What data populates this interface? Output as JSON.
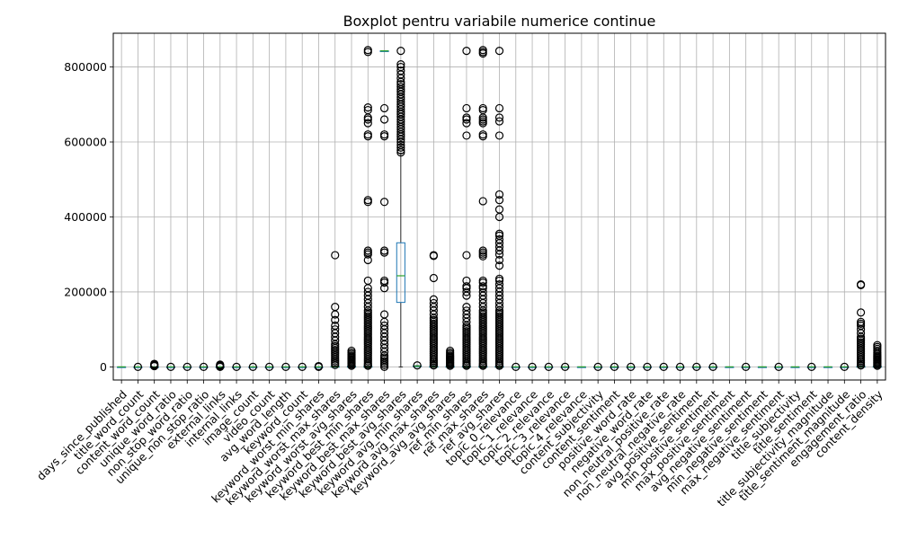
{
  "chart_data": {
    "type": "boxplot",
    "title": "Boxplot pentru variabile numerice continue",
    "xlabel": "",
    "ylabel": "",
    "ylim": [
      -35000,
      890000
    ],
    "yticks": [
      0,
      200000,
      400000,
      600000,
      800000
    ],
    "ytick_labels": [
      "0",
      "200000",
      "400000",
      "600000",
      "800000"
    ],
    "grid": true,
    "colors": {
      "box": "#1f77b4",
      "median": "#2ca02c",
      "flier": "#000000",
      "grid": "#b0b0b0"
    },
    "variables": [
      {
        "name": "days_since_published",
        "q1": 0,
        "median": 0,
        "q3": 0,
        "wlo": 0,
        "whi": 0,
        "fliers": []
      },
      {
        "name": "title_word_count",
        "q1": 0,
        "median": 0,
        "q3": 0,
        "wlo": 0,
        "whi": 0,
        "fliers": [
          0
        ]
      },
      {
        "name": "content_word_count",
        "q1": 0,
        "median": 0,
        "q3": 0,
        "wlo": 0,
        "whi": 0,
        "fliers": [
          2000,
          4000,
          6000,
          8000
        ]
      },
      {
        "name": "unique_word_ratio",
        "q1": 0,
        "median": 0,
        "q3": 0,
        "wlo": 0,
        "whi": 0,
        "fliers": [
          0
        ]
      },
      {
        "name": "non_stop_word_ratio",
        "q1": 0,
        "median": 0,
        "q3": 0,
        "wlo": 0,
        "whi": 0,
        "fliers": [
          0
        ]
      },
      {
        "name": "unique_non_stop_ratio",
        "q1": 0,
        "median": 0,
        "q3": 0,
        "wlo": 0,
        "whi": 0,
        "fliers": [
          0
        ]
      },
      {
        "name": "external_links",
        "q1": 0,
        "median": 0,
        "q3": 0,
        "wlo": 0,
        "whi": 0,
        "fliers": [
          0,
          2000,
          4000,
          6000
        ]
      },
      {
        "name": "internal_links",
        "q1": 0,
        "median": 0,
        "q3": 0,
        "wlo": 0,
        "whi": 0,
        "fliers": [
          0
        ]
      },
      {
        "name": "image_count",
        "q1": 0,
        "median": 0,
        "q3": 0,
        "wlo": 0,
        "whi": 0,
        "fliers": [
          0
        ]
      },
      {
        "name": "video_count",
        "q1": 0,
        "median": 0,
        "q3": 0,
        "wlo": 0,
        "whi": 0,
        "fliers": [
          0
        ]
      },
      {
        "name": "avg_word_length",
        "q1": 0,
        "median": 0,
        "q3": 0,
        "wlo": 0,
        "whi": 0,
        "fliers": [
          0
        ]
      },
      {
        "name": "keyword_count",
        "q1": 0,
        "median": 0,
        "q3": 0,
        "wlo": 0,
        "whi": 0,
        "fliers": [
          0
        ]
      },
      {
        "name": "keyword_worst_min_shares",
        "q1": 0,
        "median": 0,
        "q3": 0,
        "wlo": 0,
        "whi": 0,
        "fliers": [
          0,
          2000
        ]
      },
      {
        "name": "keyword_worst_max_shares",
        "q1": 0,
        "median": 0,
        "q3": 1000,
        "wlo": 0,
        "whi": 2000,
        "fliers": [
          5000,
          10000,
          15000,
          20000,
          25000,
          30000,
          35000,
          40000,
          45000,
          50000,
          55000,
          60000,
          70000,
          80000,
          90000,
          100000,
          110000,
          125000,
          140000,
          160000,
          298000
        ]
      },
      {
        "name": "keyword_worst_avg_shares",
        "q1": 0,
        "median": 0,
        "q3": 1000,
        "wlo": 0,
        "whi": 2000,
        "fliers": [
          3000,
          6000,
          9000,
          12000,
          15000,
          18000,
          21000,
          24000,
          27000,
          30000,
          34000,
          38000,
          43000
        ]
      },
      {
        "name": "keyword_best_min_shares",
        "q1": 0,
        "median": 0,
        "q3": 1000,
        "wlo": 0,
        "whi": 2000,
        "fliers": [
          3000,
          6000,
          10000,
          15000,
          20000,
          25000,
          30000,
          35000,
          40000,
          45000,
          50000,
          55000,
          60000,
          65000,
          70000,
          75000,
          80000,
          85000,
          90000,
          95000,
          100000,
          105000,
          110000,
          115000,
          120000,
          125000,
          130000,
          135000,
          140000,
          145000,
          150000,
          160000,
          170000,
          180000,
          190000,
          200000,
          210000,
          230000,
          285000,
          300000,
          305000,
          310000,
          440000,
          445000,
          615000,
          620000,
          650000,
          660000,
          665000,
          685000,
          692000,
          840000,
          845000
        ]
      },
      {
        "name": "keyword_best_max_shares",
        "q1": 843000,
        "median": 843000,
        "q3": 843000,
        "wlo": 843000,
        "whi": 843000,
        "fliers": [
          0,
          5000,
          10000,
          15000,
          20000,
          25000,
          30000,
          40000,
          50000,
          60000,
          70000,
          80000,
          90000,
          100000,
          110000,
          120000,
          140000,
          210000,
          225000,
          230000,
          305000,
          310000,
          440000,
          615000,
          620000,
          660000,
          690000
        ]
      },
      {
        "name": "keyword_best_avg_shares",
        "q1": 172000,
        "median": 243000,
        "q3": 331000,
        "wlo": 0,
        "whi": 570000,
        "fliers": [
          572000,
          578000,
          585000,
          592000,
          600000,
          607000,
          614000,
          620000,
          627000,
          634000,
          640000,
          647000,
          654000,
          660000,
          667000,
          674000,
          680000,
          687000,
          694000,
          700000,
          707000,
          714000,
          720000,
          727000,
          734000,
          740000,
          747000,
          754000,
          760000,
          770000,
          780000,
          790000,
          800000,
          807000,
          843000
        ]
      },
      {
        "name": "keyword_avg_min_shares",
        "q1": 1500,
        "median": 2000,
        "q3": 2500,
        "wlo": 500,
        "whi": 3500,
        "fliers": [
          4000
        ]
      },
      {
        "name": "keyword_avg_max_shares",
        "q1": 0,
        "median": 0,
        "q3": 1000,
        "wlo": 0,
        "whi": 2000,
        "fliers": [
          4000,
          8000,
          12000,
          16000,
          20000,
          25000,
          30000,
          35000,
          40000,
          45000,
          50000,
          55000,
          60000,
          65000,
          70000,
          75000,
          80000,
          85000,
          90000,
          95000,
          100000,
          105000,
          110000,
          115000,
          120000,
          125000,
          130000,
          140000,
          150000,
          160000,
          170000,
          180000,
          237000,
          296000,
          298000
        ]
      },
      {
        "name": "keyword_avg_avg_shares",
        "q1": 0,
        "median": 0,
        "q3": 1000,
        "wlo": 0,
        "whi": 2000,
        "fliers": [
          3000,
          6000,
          9000,
          12000,
          15000,
          18000,
          21000,
          24000,
          27000,
          30000,
          34000,
          38000,
          43000
        ]
      },
      {
        "name": "ref_min_shares",
        "q1": 0,
        "median": 0,
        "q3": 1000,
        "wlo": 0,
        "whi": 2000,
        "fliers": [
          3000,
          6000,
          10000,
          15000,
          20000,
          25000,
          30000,
          35000,
          40000,
          45000,
          50000,
          55000,
          60000,
          65000,
          70000,
          75000,
          80000,
          85000,
          90000,
          95000,
          100000,
          105000,
          110000,
          120000,
          130000,
          140000,
          150000,
          160000,
          190000,
          200000,
          210000,
          215000,
          230000,
          298000,
          617000,
          650000,
          660000,
          665000,
          690000,
          843000
        ]
      },
      {
        "name": "ref_max_shares",
        "q1": 0,
        "median": 0,
        "q3": 1000,
        "wlo": 0,
        "whi": 2000,
        "fliers": [
          3000,
          6000,
          10000,
          15000,
          20000,
          25000,
          30000,
          35000,
          40000,
          45000,
          50000,
          55000,
          60000,
          65000,
          70000,
          75000,
          80000,
          85000,
          90000,
          95000,
          100000,
          105000,
          110000,
          115000,
          120000,
          125000,
          130000,
          135000,
          140000,
          145000,
          150000,
          160000,
          170000,
          180000,
          190000,
          200000,
          210000,
          215000,
          225000,
          230000,
          295000,
          300000,
          305000,
          310000,
          442000,
          615000,
          620000,
          650000,
          655000,
          660000,
          665000,
          685000,
          690000,
          836000,
          840000,
          845000
        ]
      },
      {
        "name": "ref_avg_shares",
        "q1": 0,
        "median": 0,
        "q3": 1000,
        "wlo": 0,
        "whi": 2000,
        "fliers": [
          3000,
          6000,
          10000,
          15000,
          20000,
          25000,
          30000,
          35000,
          40000,
          45000,
          50000,
          55000,
          60000,
          65000,
          70000,
          75000,
          80000,
          85000,
          90000,
          95000,
          100000,
          105000,
          110000,
          115000,
          120000,
          125000,
          130000,
          135000,
          140000,
          145000,
          150000,
          160000,
          170000,
          180000,
          190000,
          200000,
          210000,
          220000,
          230000,
          235000,
          270000,
          285000,
          300000,
          310000,
          320000,
          330000,
          340000,
          350000,
          355000,
          400000,
          420000,
          445000,
          460000,
          617000,
          655000,
          665000,
          690000,
          843000
        ]
      },
      {
        "name": "topic_0_relevance",
        "q1": 0,
        "median": 0,
        "q3": 0,
        "wlo": 0,
        "whi": 0,
        "fliers": [
          0
        ]
      },
      {
        "name": "topic_1_relevance",
        "q1": 0,
        "median": 0,
        "q3": 0,
        "wlo": 0,
        "whi": 0,
        "fliers": [
          0
        ]
      },
      {
        "name": "topic_2_relevance",
        "q1": 0,
        "median": 0,
        "q3": 0,
        "wlo": 0,
        "whi": 0,
        "fliers": [
          0
        ]
      },
      {
        "name": "topic_3_relevance",
        "q1": 0,
        "median": 0,
        "q3": 0,
        "wlo": 0,
        "whi": 0,
        "fliers": [
          0
        ]
      },
      {
        "name": "topic_4_relevance",
        "q1": 0,
        "median": 0,
        "q3": 0,
        "wlo": 0,
        "whi": 0,
        "fliers": []
      },
      {
        "name": "content_subjectivity",
        "q1": 0,
        "median": 0,
        "q3": 0,
        "wlo": 0,
        "whi": 0,
        "fliers": [
          0
        ]
      },
      {
        "name": "content_sentiment",
        "q1": 0,
        "median": 0,
        "q3": 0,
        "wlo": 0,
        "whi": 0,
        "fliers": [
          0
        ]
      },
      {
        "name": "positive_word_rate",
        "q1": 0,
        "median": 0,
        "q3": 0,
        "wlo": 0,
        "whi": 0,
        "fliers": [
          0
        ]
      },
      {
        "name": "negative_word_rate",
        "q1": 0,
        "median": 0,
        "q3": 0,
        "wlo": 0,
        "whi": 0,
        "fliers": [
          0
        ]
      },
      {
        "name": "non_neutral_positive_rate",
        "q1": 0,
        "median": 0,
        "q3": 0,
        "wlo": 0,
        "whi": 0,
        "fliers": [
          0
        ]
      },
      {
        "name": "non_neutral_negative_rate",
        "q1": 0,
        "median": 0,
        "q3": 0,
        "wlo": 0,
        "whi": 0,
        "fliers": [
          0
        ]
      },
      {
        "name": "avg_positive_sentiment",
        "q1": 0,
        "median": 0,
        "q3": 0,
        "wlo": 0,
        "whi": 0,
        "fliers": [
          0
        ]
      },
      {
        "name": "min_positive_sentiment",
        "q1": 0,
        "median": 0,
        "q3": 0,
        "wlo": 0,
        "whi": 0,
        "fliers": [
          0
        ]
      },
      {
        "name": "max_positive_sentiment",
        "q1": 0,
        "median": 0,
        "q3": 0,
        "wlo": 0,
        "whi": 0,
        "fliers": []
      },
      {
        "name": "avg_negative_sentiment",
        "q1": 0,
        "median": 0,
        "q3": 0,
        "wlo": 0,
        "whi": 0,
        "fliers": [
          0
        ]
      },
      {
        "name": "min_negative_sentiment",
        "q1": 0,
        "median": 0,
        "q3": 0,
        "wlo": 0,
        "whi": 0,
        "fliers": []
      },
      {
        "name": "max_negative_sentiment",
        "q1": 0,
        "median": 0,
        "q3": 0,
        "wlo": 0,
        "whi": 0,
        "fliers": [
          0
        ]
      },
      {
        "name": "title_subjectivity",
        "q1": 0,
        "median": 0,
        "q3": 0,
        "wlo": 0,
        "whi": 0,
        "fliers": []
      },
      {
        "name": "title_sentiment",
        "q1": 0,
        "median": 0,
        "q3": 0,
        "wlo": 0,
        "whi": 0,
        "fliers": [
          0
        ]
      },
      {
        "name": "title_subjectivity_magnitude",
        "q1": 0,
        "median": 0,
        "q3": 0,
        "wlo": 0,
        "whi": 0,
        "fliers": []
      },
      {
        "name": "title_sentiment_magnitude",
        "q1": 0,
        "median": 0,
        "q3": 0,
        "wlo": 0,
        "whi": 0,
        "fliers": [
          0
        ]
      },
      {
        "name": "engagement_ratio",
        "q1": 0,
        "median": 0,
        "q3": 1000,
        "wlo": 0,
        "whi": 2000,
        "fliers": [
          4000,
          8000,
          12000,
          16000,
          20000,
          25000,
          30000,
          35000,
          40000,
          45000,
          50000,
          55000,
          60000,
          65000,
          70000,
          75000,
          80000,
          90000,
          100000,
          110000,
          115000,
          120000,
          145000,
          218000,
          220000
        ]
      },
      {
        "name": "content_density",
        "q1": 0,
        "median": 0,
        "q3": 1000,
        "wlo": 0,
        "whi": 2000,
        "fliers": [
          3000,
          6000,
          9000,
          12000,
          15000,
          18000,
          21000,
          24000,
          27000,
          30000,
          34000,
          38000,
          43000,
          48000,
          53000,
          58000
        ]
      }
    ]
  }
}
